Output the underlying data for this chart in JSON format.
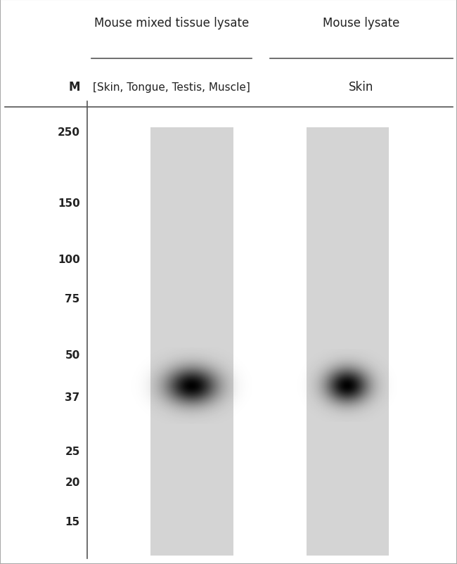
{
  "bg_color": "#ffffff",
  "panel_bg": "#d4d4d4",
  "line_color": "#555555",
  "text_color": "#222222",
  "title1_line1": "Mouse mixed tissue lysate",
  "title1_line2": "[Skin, Tongue, Testis, Muscle]",
  "title2_line1": "Mouse lysate",
  "title2_line2": "Skin",
  "lane_label": "M",
  "marker_labels": [
    "250",
    "150",
    "100",
    "75",
    "50",
    "37",
    "25",
    "20",
    "15"
  ],
  "marker_kda": [
    250,
    150,
    100,
    75,
    50,
    37,
    25,
    20,
    15
  ],
  "band_kda": 40,
  "fig_width": 6.5,
  "fig_height": 8.03
}
